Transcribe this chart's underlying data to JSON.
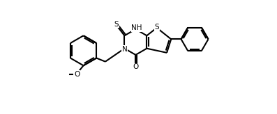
{
  "background_color": "#ffffff",
  "line_color": "#000000",
  "line_width": 1.5,
  "figsize": [
    3.97,
    1.64
  ],
  "dpi": 100,
  "xlim": [
    0,
    11
  ],
  "ylim": [
    0,
    8
  ],
  "label_fontsize": 7.5,
  "label_NH": "NH",
  "label_N": "N",
  "label_S_thione": "S",
  "label_S_thio": "S",
  "label_O_ketone": "O",
  "label_O_methoxy": "O"
}
